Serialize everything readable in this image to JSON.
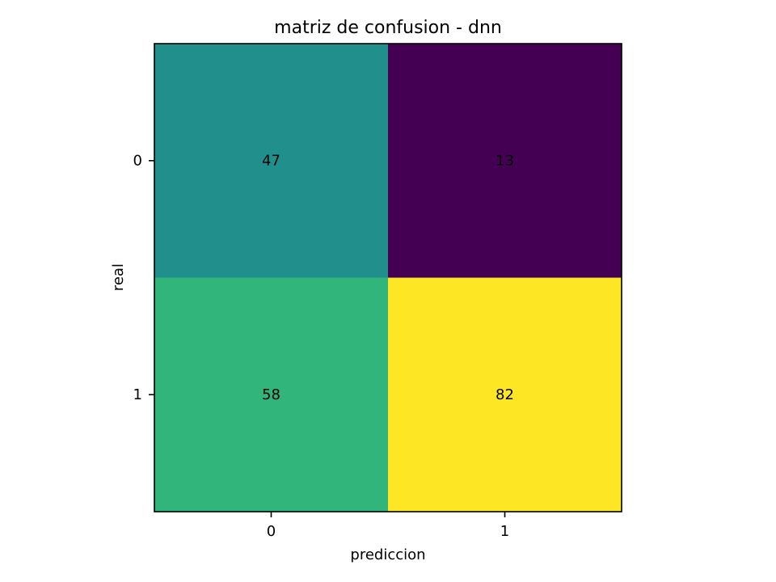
{
  "chart_data": {
    "type": "heatmap",
    "title": "matriz de confusion - dnn",
    "xlabel": "prediccion",
    "ylabel": "real",
    "x_categories": [
      "0",
      "1"
    ],
    "y_categories": [
      "0",
      "1"
    ],
    "values": [
      [
        47,
        13
      ],
      [
        58,
        82
      ]
    ],
    "colormap": "viridis",
    "cell_colors": [
      [
        "#21908d",
        "#440154"
      ],
      [
        "#32b57a",
        "#fde725"
      ]
    ],
    "grid": false,
    "legend": "none"
  }
}
